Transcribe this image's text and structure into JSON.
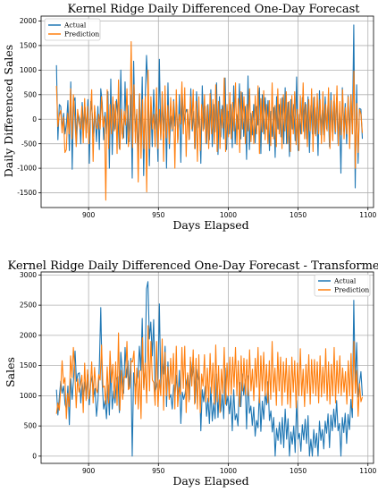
{
  "chart_data": [
    {
      "type": "line",
      "title": "Kernel Ridge Daily Differenced One-Day Forecast",
      "xlabel": "Days Elapsed",
      "ylabel": "Daily Differenced Sales",
      "xlim": [
        866,
        1104
      ],
      "ylim": [
        -1800,
        2100
      ],
      "xticks": [
        900,
        950,
        1000,
        1050,
        1100
      ],
      "yticks": [
        -1500,
        -1000,
        -500,
        0,
        500,
        1000,
        1500,
        2000
      ],
      "grid": true,
      "legend": "top-left",
      "x_start": 877,
      "x_end": 1096,
      "series": [
        {
          "name": "Actual",
          "color": "#1f77b4",
          "values": [
            1100,
            -420,
            300,
            260,
            -200,
            120,
            -300,
            -80,
            380,
            -640,
            760,
            -1020,
            360,
            440,
            -500,
            120,
            20,
            -500,
            340,
            -230,
            240,
            -280,
            400,
            -900,
            360,
            120,
            -350,
            140,
            -460,
            260,
            -620,
            620,
            340,
            -420,
            140,
            -300,
            560,
            -1000,
            820,
            -720,
            300,
            -200,
            400,
            40,
            -600,
            1000,
            -300,
            -380,
            760,
            -500,
            280,
            -460,
            500,
            -1200,
            1180,
            -250,
            100,
            -700,
            500,
            -400,
            860,
            -1150,
            340,
            1300,
            600,
            -950,
            280,
            -560,
            600,
            -200,
            100,
            -860,
            1220,
            -420,
            500,
            -240,
            460,
            -1000,
            740,
            -600,
            60,
            -240,
            400,
            -140,
            300,
            -420,
            500,
            -880,
            520,
            -120,
            100,
            200,
            100,
            -400,
            620,
            -240,
            160,
            -600,
            560,
            -180,
            60,
            -900,
            680,
            -200,
            260,
            -500,
            300,
            -420,
            600,
            -560,
            300,
            -260,
            740,
            -720,
            460,
            -360,
            280,
            -400,
            840,
            -620,
            160,
            -300,
            300,
            -580,
            680,
            -500,
            100,
            -200,
            720,
            -400,
            540,
            -350,
            260,
            -820,
            880,
            -620,
            120,
            -320,
            300,
            -480,
            260,
            -120,
            640,
            -700,
            500,
            -300,
            440,
            -200,
            380,
            -640,
            160,
            -350,
            240,
            -780,
            460,
            -200,
            300,
            -360,
            440,
            -500,
            640,
            -500,
            340,
            -760,
            400,
            -200,
            300,
            -440,
            860,
            -640,
            100,
            -300,
            440,
            -250,
            340,
            -400,
            460,
            -680,
            280,
            -300,
            440,
            -300,
            240,
            -740,
            580,
            -320,
            180,
            -320,
            460,
            -200,
            320,
            -560,
            540,
            -260,
            360,
            -300,
            440,
            -500,
            120,
            -1100,
            640,
            -250,
            320,
            -500,
            480,
            -250,
            500,
            -300,
            1920,
            -1400,
            700,
            -900,
            220,
            200,
            -400
          ]
        },
        {
          "name": "Prediction",
          "color": "#ff7f0e",
          "values": [
            680,
            -150,
            80,
            180,
            -280,
            40,
            -680,
            -620,
            120,
            -300,
            620,
            -400,
            500,
            40,
            -560,
            200,
            -80,
            -200,
            260,
            -480,
            420,
            -380,
            260,
            -500,
            80,
            600,
            -860,
            280,
            -120,
            -200,
            100,
            -200,
            460,
            -160,
            60,
            -1650,
            600,
            -600,
            300,
            -300,
            460,
            -240,
            360,
            -700,
            800,
            -620,
            200,
            -400,
            160,
            -120,
            620,
            -560,
            -200,
            1580,
            -580,
            700,
            -480,
            200,
            -1280,
            520,
            -800,
            400,
            -600,
            460,
            -1480,
            1000,
            -600,
            460,
            -200,
            100,
            -560,
            640,
            -600,
            200,
            -400,
            560,
            -860,
            680,
            -380,
            280,
            -500,
            440,
            -200,
            360,
            -1000,
            600,
            -480,
            100,
            -100,
            760,
            -300,
            640,
            -760,
            200,
            -420,
            460,
            -200,
            600,
            -600,
            360,
            -860,
            460,
            -640,
            300,
            -240,
            500,
            -480,
            280,
            -600,
            520,
            -300,
            400,
            -500,
            700,
            -660,
            360,
            -600,
            200,
            -180,
            840,
            -660,
            300,
            -360,
            540,
            -400,
            340,
            -240,
            740,
            -520,
            420,
            -680,
            560,
            -200,
            460,
            -500,
            300,
            -240,
            620,
            -460,
            160,
            -500,
            480,
            -300,
            680,
            -700,
            420,
            -260,
            580,
            -420,
            300,
            -500,
            380,
            -540,
            740,
            -400,
            280,
            -560,
            620,
            -300,
            420,
            -600,
            500,
            -240,
            560,
            -500,
            360,
            -660,
            480,
            -300,
            560,
            -520,
            200,
            -640,
            480,
            -300,
            740,
            -400,
            300,
            -560,
            400,
            -240,
            620,
            -660,
            460,
            -340,
            520,
            -300,
            400,
            -500,
            560,
            -460,
            300,
            -240,
            640,
            -600,
            380,
            -440,
            500,
            -260,
            680,
            -540,
            360,
            -320,
            600,
            -400,
            240,
            -300,
            460,
            -600,
            500,
            -300,
            980,
            -1000,
            320,
            -680,
            200,
            100,
            -280
          ]
        }
      ]
    },
    {
      "type": "line",
      "title": "Kernel Ridge Daily Differenced One-Day Forecast - Transformed Back",
      "xlabel": "Days Elapsed",
      "ylabel": "Sales",
      "xlim": [
        866,
        1104
      ],
      "ylim": [
        -120,
        3050
      ],
      "xticks": [
        900,
        950,
        1000,
        1050,
        1100
      ],
      "yticks": [
        0,
        500,
        1000,
        1500,
        2000,
        2500,
        3000
      ],
      "grid": true,
      "legend": "top-right",
      "x_start": 877,
      "x_end": 1096,
      "series": [
        {
          "name": "Actual",
          "color": "#1f77b4",
          "values": [
            1100,
            680,
            980,
            1240,
            1040,
            1160,
            860,
            780,
            1160,
            520,
            1280,
            940,
            1300,
            1740,
            1240,
            1360,
            1380,
            880,
            1220,
            990,
            1230,
            950,
            1350,
            850,
            1210,
            1330,
            980,
            1120,
            660,
            920,
            1500,
            2460,
            1200,
            780,
            920,
            620,
            1180,
            680,
            1500,
            780,
            1080,
            880,
            1280,
            1320,
            720,
            1720,
            1420,
            1040,
            1800,
            1300,
            1580,
            1120,
            1620,
            0,
            1380,
            1130,
            1230,
            1320,
            1820,
            1420,
            2280,
            1130,
            1470,
            2770,
            2890,
            1940,
            2220,
            1660,
            2260,
            1060,
            1160,
            1300,
            2520,
            1100,
            1600,
            1360,
            1820,
            820,
            1560,
            960,
            1020,
            780,
            1180,
            1040,
            1340,
            920,
            1420,
            540,
            1060,
            940,
            1040,
            1240,
            1340,
            940,
            1560,
            1320,
            1480,
            880,
            1440,
            1260,
            1320,
            420,
            1100,
            900,
            1160,
            660,
            960,
            540,
            1140,
            580,
            880,
            620,
            1360,
            640,
            1100,
            740,
            1020,
            620,
            1460,
            840,
            1000,
            700,
            1000,
            420,
            1100,
            600,
            700,
            500,
            1220,
            820,
            1360,
            1010,
            1270,
            450,
            1330,
            710,
            830,
            510,
            810,
            330,
            590,
            470,
            1110,
            410,
            910,
            610,
            1050,
            850,
            1230,
            590,
            750,
            400,
            640,
            0,
            460,
            260,
            560,
            200,
            640,
            140,
            780,
            280,
            620,
            0,
            400,
            200,
            500,
            60,
            920,
            280,
            380,
            80,
            520,
            270,
            610,
            210,
            670,
            0,
            280,
            0,
            440,
            140,
            380,
            0,
            580,
            260,
            440,
            120,
            580,
            380,
            700,
            140,
            680,
            420,
            780,
            480,
            920,
            420,
            540,
            0,
            640,
            390,
            710,
            210,
            690,
            440,
            940,
            640,
            2580,
            1180,
            1880,
            980,
            1200,
            1400,
            1000
          ]
        },
        {
          "name": "Prediction",
          "color": "#ff7f0e",
          "values": [
            700,
            880,
            760,
            1120,
            1580,
            1200,
            1300,
            620,
            1040,
            820,
            1660,
            1300,
            1800,
            1420,
            800,
            1280,
            1060,
            1180,
            1340,
            720,
            1540,
            920,
            1430,
            950,
            1140,
            1560,
            880,
            1470,
            1120,
            1050,
            1350,
            1260,
            1840,
            1140,
            1160,
            860,
            1480,
            880,
            1740,
            1220,
            1520,
            960,
            1560,
            840,
            2040,
            760,
            1420,
            940,
            1320,
            1300,
            1900,
            1100,
            1140,
            1580,
            1560,
            1740,
            860,
            1460,
            780,
            1420,
            620,
            1960,
            1100,
            1540,
            880,
            2160,
            1080,
            1900,
            1260,
            1220,
            840,
            1900,
            820,
            1260,
            1000,
            1940,
            760,
            1720,
            1000,
            1480,
            940,
            1620,
            1200,
            1700,
            780,
            1820,
            820,
            1140,
            1020,
            1800,
            1120,
            1820,
            720,
            1380,
            900,
            1640,
            1160,
            1760,
            860,
            1620,
            780,
            1680,
            720,
            1360,
            1160,
            1680,
            900,
            1460,
            900,
            1700,
            1040,
            1540,
            860,
            1840,
            900,
            1500,
            720,
            1440,
            1040,
            1800,
            860,
            1540,
            1000,
            1640,
            1020,
            1640,
            1140,
            1800,
            1000,
            1580,
            820,
            1660,
            1080,
            1620,
            1020,
            1600,
            1000,
            1760,
            1080,
            1440,
            920,
            1620,
            1140,
            1800,
            880,
            1660,
            1080,
            1720,
            1000,
            1520,
            880,
            1580,
            940,
            1900,
            1060,
            1460,
            840,
            1720,
            1080,
            1640,
            840,
            1560,
            1060,
            1620,
            860,
            1500,
            800,
            1640,
            1060,
            1580,
            800,
            1540,
            1000,
            1780,
            1000,
            1440,
            820,
            1520,
            1040,
            1680,
            860,
            1600,
            1040,
            1600,
            1000,
            1560,
            880,
            1660,
            980,
            1480,
            1040,
            1780,
            920,
            1560,
            860,
            1520,
            1000,
            1800,
            880,
            1580,
            1040,
            1660,
            1000,
            1460,
            1060,
            1400,
            860,
            1580,
            1000,
            1700,
            800,
            1900,
            1040,
            1420,
            660,
            1200,
            900,
            980
          ]
        }
      ]
    }
  ]
}
